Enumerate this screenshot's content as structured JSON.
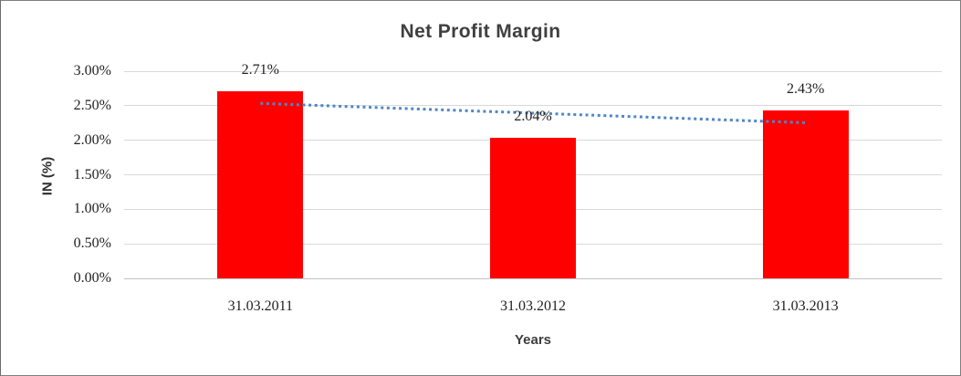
{
  "window": {
    "background": "#ffffff",
    "border_color": "#7f7f7f"
  },
  "chart_data": {
    "type": "bar",
    "title": "Net Profit Margin",
    "xlabel": "Years",
    "ylabel": "IN (%)",
    "categories": [
      "31.03.2011",
      "31.03.2012",
      "31.03.2013"
    ],
    "series": [
      {
        "name": "Net Profit Margin",
        "values": [
          2.71,
          2.04,
          2.43
        ]
      }
    ],
    "data_labels": [
      "2.71%",
      "2.04%",
      "2.43%"
    ],
    "y_ticks": [
      "3.00%",
      "2.50%",
      "2.00%",
      "1.50%",
      "1.00%",
      "0.50%",
      "0.00%"
    ],
    "ylim": [
      0,
      3
    ],
    "y_step": 0.5,
    "grid": true,
    "legend": "none",
    "bar_color": "#ff0000",
    "gridline_color": "#d9d9d9",
    "axis_line_color": "#c2c2c2",
    "tick_label_color": "#1f1f1f",
    "title_color": "#3f3f3f",
    "trendline": {
      "type": "linear",
      "style": "dotted",
      "color": "#4e86c8"
    }
  }
}
